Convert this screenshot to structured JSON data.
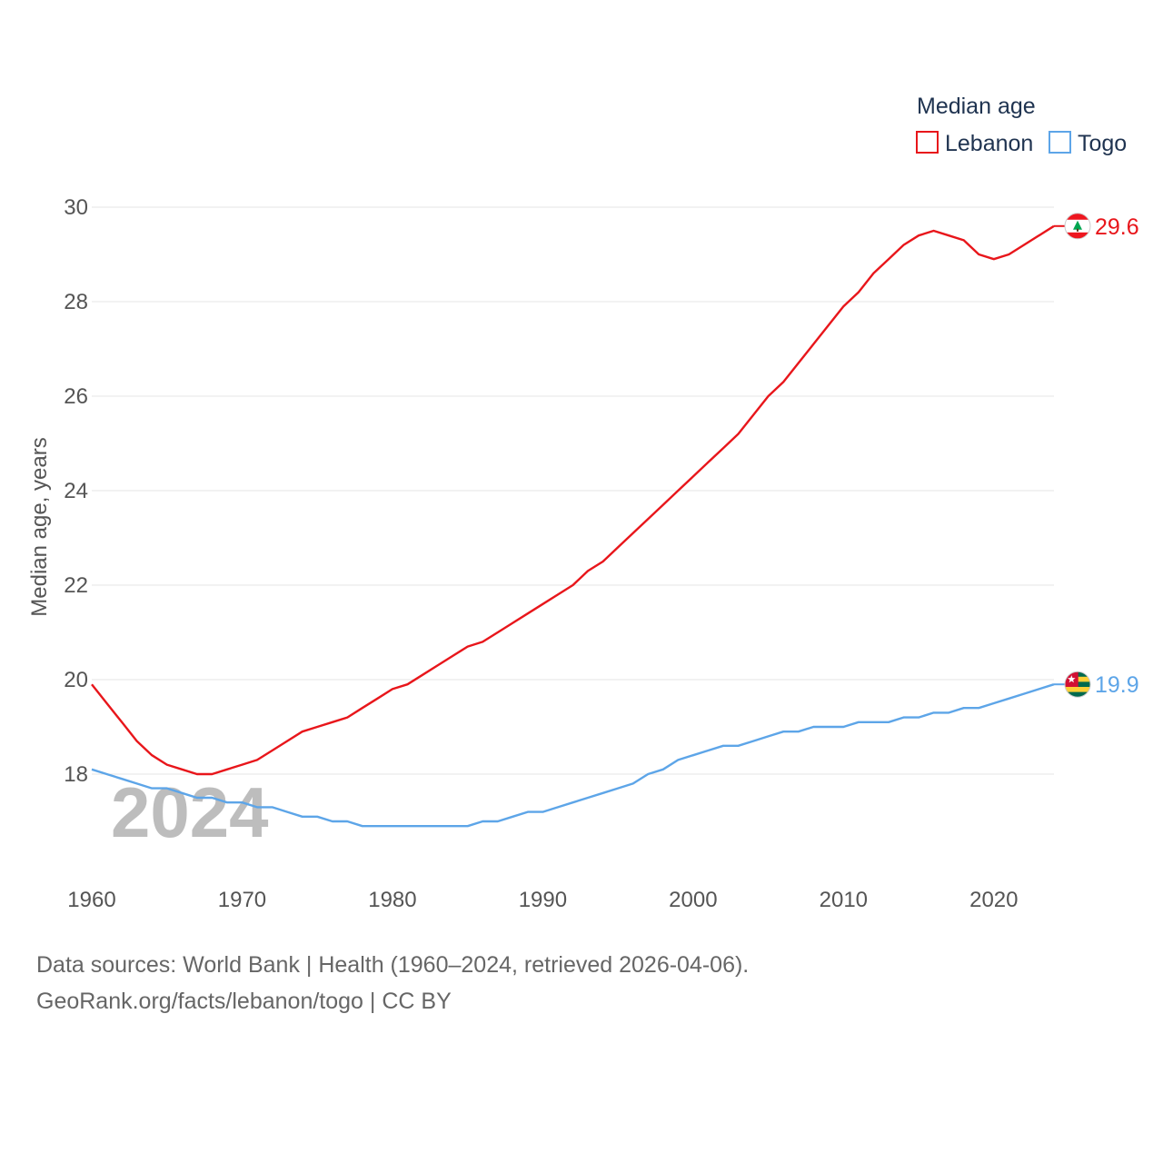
{
  "chart_data": {
    "type": "line",
    "title": "Median age",
    "xlabel": "",
    "ylabel": "Median age, years",
    "xlim": [
      1960,
      2024
    ],
    "ylim": [
      16,
      30
    ],
    "y_ticks": [
      18,
      20,
      22,
      24,
      26,
      28,
      30
    ],
    "x_ticks": [
      1960,
      1970,
      1980,
      1990,
      2000,
      2010,
      2020
    ],
    "grid": true,
    "legend_title": "Median age",
    "legend_position": "top-right",
    "highlight_year": "2024",
    "x": [
      1960,
      1961,
      1962,
      1963,
      1964,
      1965,
      1966,
      1967,
      1968,
      1969,
      1970,
      1971,
      1972,
      1973,
      1974,
      1975,
      1976,
      1977,
      1978,
      1979,
      1980,
      1981,
      1982,
      1983,
      1984,
      1985,
      1986,
      1987,
      1988,
      1989,
      1990,
      1991,
      1992,
      1993,
      1994,
      1995,
      1996,
      1997,
      1998,
      1999,
      2000,
      2001,
      2002,
      2003,
      2004,
      2005,
      2006,
      2007,
      2008,
      2009,
      2010,
      2011,
      2012,
      2013,
      2014,
      2015,
      2016,
      2017,
      2018,
      2019,
      2020,
      2021,
      2022,
      2023,
      2024
    ],
    "series": [
      {
        "name": "Lebanon",
        "color": "#e8161b",
        "end_label": "29.6",
        "flag_icon": "lebanon-flag-icon",
        "values": [
          19.9,
          19.5,
          19.1,
          18.7,
          18.4,
          18.2,
          18.1,
          18.0,
          18.0,
          18.1,
          18.2,
          18.3,
          18.5,
          18.7,
          18.9,
          19.0,
          19.1,
          19.2,
          19.4,
          19.6,
          19.8,
          19.9,
          20.1,
          20.3,
          20.5,
          20.7,
          20.8,
          21.0,
          21.2,
          21.4,
          21.6,
          21.8,
          22.0,
          22.3,
          22.5,
          22.8,
          23.1,
          23.4,
          23.7,
          24.0,
          24.3,
          24.6,
          24.9,
          25.2,
          25.6,
          26.0,
          26.3,
          26.7,
          27.1,
          27.5,
          27.9,
          28.2,
          28.6,
          28.9,
          29.2,
          29.4,
          29.5,
          29.4,
          29.3,
          29.0,
          28.9,
          29.0,
          29.2,
          29.4,
          29.6
        ]
      },
      {
        "name": "Togo",
        "color": "#5da5e8",
        "end_label": "19.9",
        "flag_icon": "togo-flag-icon",
        "values": [
          18.1,
          18.0,
          17.9,
          17.8,
          17.7,
          17.7,
          17.6,
          17.5,
          17.5,
          17.4,
          17.4,
          17.3,
          17.3,
          17.2,
          17.1,
          17.1,
          17.0,
          17.0,
          16.9,
          16.9,
          16.9,
          16.9,
          16.9,
          16.9,
          16.9,
          16.9,
          17.0,
          17.0,
          17.1,
          17.2,
          17.2,
          17.3,
          17.4,
          17.5,
          17.6,
          17.7,
          17.8,
          18.0,
          18.1,
          18.3,
          18.4,
          18.5,
          18.6,
          18.6,
          18.7,
          18.8,
          18.9,
          18.9,
          19.0,
          19.0,
          19.0,
          19.1,
          19.1,
          19.1,
          19.2,
          19.2,
          19.3,
          19.3,
          19.4,
          19.4,
          19.5,
          19.6,
          19.7,
          19.8,
          19.9
        ]
      }
    ]
  },
  "footer": {
    "source_line": "Data sources: World Bank | Health (1960–2024, retrieved 2026-04-06).",
    "link_line": "GeoRank.org/facts/lebanon/togo | CC BY"
  }
}
